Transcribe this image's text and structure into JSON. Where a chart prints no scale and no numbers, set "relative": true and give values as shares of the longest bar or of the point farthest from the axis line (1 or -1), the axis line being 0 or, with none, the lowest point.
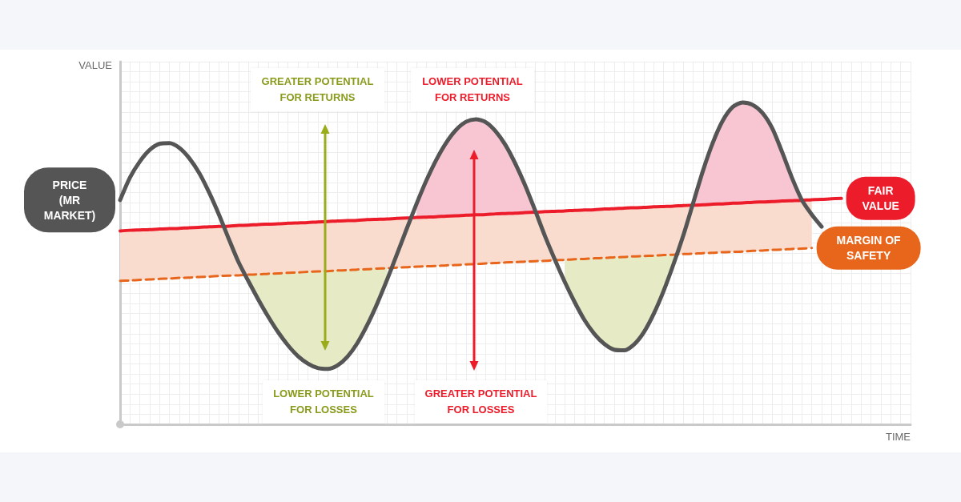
{
  "chart_data": {
    "type": "line",
    "xlabel": "TIME",
    "ylabel": "VALUE",
    "relative": true,
    "grid": true,
    "legend": false,
    "categories": [
      null,
      null,
      null,
      null,
      null,
      null,
      null,
      null,
      null,
      null,
      null,
      null,
      null,
      null,
      null,
      null,
      null,
      null,
      null,
      null,
      null,
      null,
      null,
      null,
      null,
      null,
      null,
      null,
      null,
      null,
      null,
      null,
      null,
      null,
      null,
      null,
      null,
      null,
      null,
      null,
      null,
      null,
      null,
      null,
      null,
      null,
      null,
      null,
      null,
      null,
      null,
      null,
      null,
      null,
      null,
      null,
      null,
      null,
      null,
      null,
      null,
      null,
      null,
      null,
      null,
      null,
      null,
      null,
      null,
      null,
      null,
      null,
      null,
      null,
      null,
      null,
      null,
      null,
      null,
      null,
      null
    ],
    "annotations": [
      "GREATER POTENTIAL FOR RETURNS",
      "LOWER POTENTIAL FOR RETURNS",
      "LOWER POTENTIAL FOR LOSSES",
      "GREATER POTENTIAL FOR LOSSES"
    ],
    "series": [
      {
        "name": "PRICE (MR MARKET)",
        "color": "#555555",
        "values": [
          0.697,
          0.767,
          0.817,
          0.853,
          0.872,
          0.874,
          0.859,
          0.827,
          0.781,
          0.721,
          0.652,
          0.576,
          0.503,
          0.444,
          0.387,
          0.334,
          0.286,
          0.245,
          0.212,
          0.189,
          0.175,
          0.172,
          0.183,
          0.21,
          0.252,
          0.308,
          0.374,
          0.448,
          0.527,
          0.607,
          0.685,
          0.758,
          0.822,
          0.875,
          0.915,
          0.94,
          0.948,
          0.939,
          0.911,
          0.868,
          0.81,
          0.742,
          0.665,
          0.585,
          0.512,
          0.443,
          0.38,
          0.324,
          0.281,
          0.25,
          0.232,
          0.23,
          0.248,
          0.286,
          0.343,
          0.414,
          0.497,
          0.587,
          0.688,
          0.789,
          0.876,
          0.944,
          0.986,
          1,
          0.993,
          0.968,
          0.92,
          0.846,
          0.766,
          0.697,
          0.652,
          0.614,
          null,
          null,
          null,
          null,
          null,
          null,
          null,
          null,
          null
        ]
      },
      {
        "name": "FAIR VALUE",
        "color": "#ec1c2a",
        "values": [
          0.601,
          0.603,
          0.604,
          0.605,
          0.607,
          0.608,
          0.609,
          0.611,
          0.612,
          0.614,
          0.615,
          0.616,
          0.618,
          0.619,
          0.621,
          0.622,
          0.623,
          0.625,
          0.626,
          0.627,
          0.629,
          0.63,
          0.632,
          0.633,
          0.634,
          0.636,
          0.637,
          0.638,
          0.64,
          0.641,
          0.643,
          0.644,
          0.645,
          0.647,
          0.648,
          0.65,
          0.651,
          0.652,
          0.654,
          0.655,
          0.656,
          0.658,
          0.659,
          0.661,
          0.662,
          0.663,
          0.665,
          0.666,
          0.667,
          0.669,
          0.67,
          0.672,
          0.673,
          0.674,
          0.676,
          0.677,
          0.678,
          0.68,
          0.681,
          0.682,
          0.684,
          0.685,
          0.687,
          0.688,
          0.69,
          0.691,
          0.692,
          0.694,
          0.695,
          0.696,
          0.698,
          0.699,
          0.701,
          0.702,
          null,
          null,
          null,
          null,
          null,
          null,
          null
        ]
      },
      {
        "name": "MARGIN OF SAFETY",
        "color": "#e8661c",
        "line_style": "dashed",
        "values": [
          0.446,
          0.447,
          0.449,
          0.45,
          0.452,
          0.453,
          0.455,
          0.456,
          0.458,
          0.459,
          0.461,
          0.462,
          0.463,
          0.465,
          0.466,
          0.468,
          0.469,
          0.471,
          0.472,
          0.474,
          0.475,
          0.476,
          0.478,
          0.479,
          0.481,
          0.482,
          0.484,
          0.485,
          0.487,
          0.488,
          0.49,
          0.491,
          0.492,
          0.494,
          0.495,
          0.497,
          0.498,
          0.5,
          0.501,
          0.503,
          0.504,
          0.506,
          0.507,
          0.508,
          0.51,
          0.511,
          0.513,
          0.514,
          0.516,
          0.517,
          0.519,
          0.52,
          0.522,
          0.523,
          0.524,
          0.526,
          0.527,
          0.529,
          0.53,
          0.532,
          0.533,
          0.535,
          0.536,
          0.537,
          0.539,
          0.54,
          0.542,
          0.543,
          0.545,
          0.546,
          0.548,
          null,
          null,
          null,
          null,
          null,
          null,
          null,
          null,
          null,
          null
        ]
      },
      {
        "color": "#fadccf",
        "values": [
          null,
          null,
          null,
          null,
          null,
          null,
          null,
          null,
          null,
          null,
          null,
          null,
          null,
          null,
          null,
          null,
          null,
          null,
          null,
          null,
          null,
          null,
          null,
          null,
          null,
          null,
          null,
          null,
          null,
          null,
          null,
          null,
          null,
          null,
          null,
          null,
          null,
          null,
          null,
          null,
          null,
          null,
          null,
          null,
          null,
          null,
          null,
          null,
          null,
          null,
          null,
          null,
          null,
          null,
          null,
          null,
          null,
          null,
          null,
          null,
          null,
          null,
          null,
          null,
          null,
          null,
          null,
          null,
          null,
          null,
          null,
          null,
          null,
          null,
          null,
          null,
          null,
          null,
          null,
          null,
          null
        ],
        "lower": [
          0.446,
          0.447,
          0.449,
          0.45,
          0.452,
          0.453,
          0.455,
          0.456,
          0.458,
          0.459,
          0.461,
          0.462,
          0.463,
          0.465,
          0.466,
          0.468,
          0.469,
          0.471,
          0.472,
          0.474,
          0.475,
          0.476,
          0.478,
          0.479,
          0.481,
          0.482,
          0.484,
          0.485,
          0.487,
          0.488,
          0.49,
          0.491,
          0.492,
          0.494,
          0.495,
          0.497,
          0.498,
          0.5,
          0.501,
          0.503,
          0.504,
          0.506,
          0.507,
          0.508,
          0.51,
          0.511,
          0.513,
          0.514,
          0.516,
          0.517,
          0.519,
          0.52,
          0.522,
          0.523,
          0.524,
          0.526,
          0.527,
          0.529,
          0.53,
          0.532,
          0.533,
          0.535,
          0.536,
          0.537,
          0.539,
          0.54,
          0.542,
          0.543,
          0.545,
          0.546,
          0.548,
          null,
          null,
          null,
          null,
          null,
          null,
          null,
          null,
          null,
          null
        ],
        "upper": [
          0.601,
          0.603,
          0.604,
          0.605,
          0.607,
          0.608,
          0.609,
          0.611,
          0.612,
          0.614,
          0.615,
          0.616,
          0.618,
          0.619,
          0.621,
          0.622,
          0.623,
          0.625,
          0.626,
          0.627,
          0.629,
          0.63,
          0.632,
          0.633,
          0.634,
          0.636,
          0.637,
          0.638,
          0.64,
          0.641,
          0.643,
          0.644,
          0.645,
          0.647,
          0.648,
          0.65,
          0.651,
          0.652,
          0.654,
          0.655,
          0.656,
          0.658,
          0.659,
          0.661,
          0.662,
          0.663,
          0.665,
          0.666,
          0.667,
          0.669,
          0.67,
          0.672,
          0.673,
          0.674,
          0.676,
          0.677,
          0.678,
          0.68,
          0.681,
          0.682,
          0.684,
          0.685,
          0.687,
          0.688,
          0.69,
          0.691,
          0.692,
          0.694,
          0.695,
          0.696,
          0.698,
          null,
          null,
          null,
          null,
          null,
          null,
          null,
          null,
          null,
          null
        ]
      },
      {
        "color": "#f7c6d2",
        "values": [
          null,
          null,
          null,
          null,
          null,
          null,
          null,
          null,
          null,
          null,
          null,
          null,
          null,
          null,
          null,
          null,
          null,
          null,
          null,
          null,
          null,
          null,
          null,
          null,
          null,
          null,
          null,
          null,
          null,
          null,
          null,
          null,
          null,
          null,
          null,
          null,
          null,
          null,
          null,
          null,
          null,
          null,
          null,
          null,
          null,
          null,
          null,
          null,
          null,
          null,
          null,
          null,
          null,
          null,
          null,
          null,
          null,
          null,
          null,
          null,
          null,
          null,
          null,
          null,
          null,
          null,
          null,
          null,
          null,
          null,
          null,
          null,
          null,
          null,
          null,
          null,
          null,
          null,
          null,
          null,
          null
        ],
        "lower": [
          null,
          null,
          null,
          null,
          null,
          null,
          null,
          null,
          null,
          null,
          null,
          null,
          null,
          null,
          null,
          null,
          null,
          null,
          null,
          null,
          null,
          null,
          null,
          null,
          null,
          null,
          null,
          null,
          null,
          null,
          0.643,
          0.644,
          0.645,
          0.647,
          0.648,
          0.65,
          0.651,
          0.652,
          0.654,
          0.655,
          0.656,
          0.658,
          0.659,
          null,
          null,
          null,
          null,
          null,
          null,
          null,
          null,
          null,
          null,
          null,
          null,
          null,
          null,
          null,
          null,
          null,
          null,
          null,
          null,
          null,
          null,
          null,
          null,
          null,
          null,
          null,
          null,
          null,
          null,
          null,
          null,
          null,
          null,
          null,
          null,
          null,
          null
        ],
        "upper": [
          null,
          null,
          null,
          null,
          null,
          null,
          null,
          null,
          null,
          null,
          null,
          null,
          null,
          null,
          null,
          null,
          null,
          null,
          null,
          null,
          null,
          null,
          null,
          null,
          null,
          null,
          null,
          null,
          null,
          null,
          0.685,
          0.758,
          0.822,
          0.875,
          0.915,
          0.94,
          0.948,
          0.939,
          0.911,
          0.868,
          0.81,
          0.742,
          0.665,
          null,
          null,
          null,
          null,
          null,
          null,
          null,
          null,
          null,
          null,
          null,
          null,
          null,
          null,
          null,
          null,
          null,
          null,
          null,
          null,
          null,
          null,
          null,
          null,
          null,
          null,
          null,
          null,
          null,
          null,
          null,
          null,
          null,
          null,
          null,
          null,
          null,
          null
        ]
      },
      {
        "color": "#f7c6d2",
        "values": [
          null,
          null,
          null,
          null,
          null,
          null,
          null,
          null,
          null,
          null,
          null,
          null,
          null,
          null,
          null,
          null,
          null,
          null,
          null,
          null,
          null,
          null,
          null,
          null,
          null,
          null,
          null,
          null,
          null,
          null,
          null,
          null,
          null,
          null,
          null,
          null,
          null,
          null,
          null,
          null,
          null,
          null,
          null,
          null,
          null,
          null,
          null,
          null,
          null,
          null,
          null,
          null,
          null,
          null,
          null,
          null,
          null,
          null,
          null,
          null,
          null,
          null,
          null,
          null,
          null,
          null,
          null,
          null,
          null,
          null,
          null,
          null,
          null,
          null,
          null,
          null,
          null,
          null,
          null,
          null,
          null
        ],
        "lower": [
          null,
          null,
          null,
          null,
          null,
          null,
          null,
          null,
          null,
          null,
          null,
          null,
          null,
          null,
          null,
          null,
          null,
          null,
          null,
          null,
          null,
          null,
          null,
          null,
          null,
          null,
          null,
          null,
          null,
          null,
          null,
          null,
          null,
          null,
          null,
          null,
          null,
          null,
          null,
          null,
          null,
          null,
          null,
          null,
          null,
          null,
          null,
          null,
          null,
          null,
          null,
          null,
          null,
          null,
          null,
          null,
          null,
          null,
          0.681,
          0.682,
          0.684,
          0.685,
          0.687,
          0.688,
          0.69,
          0.691,
          0.692,
          0.694,
          0.695,
          0.696,
          null,
          null,
          null,
          null,
          null,
          null,
          null,
          null,
          null,
          null,
          null
        ],
        "upper": [
          null,
          null,
          null,
          null,
          null,
          null,
          null,
          null,
          null,
          null,
          null,
          null,
          null,
          null,
          null,
          null,
          null,
          null,
          null,
          null,
          null,
          null,
          null,
          null,
          null,
          null,
          null,
          null,
          null,
          null,
          null,
          null,
          null,
          null,
          null,
          null,
          null,
          null,
          null,
          null,
          null,
          null,
          null,
          null,
          null,
          null,
          null,
          null,
          null,
          null,
          null,
          null,
          null,
          null,
          null,
          null,
          null,
          null,
          0.688,
          0.789,
          0.876,
          0.944,
          0.986,
          1,
          0.993,
          0.968,
          0.92,
          0.846,
          0.766,
          0.697,
          null,
          null,
          null,
          null,
          null,
          null,
          null,
          null,
          null,
          null,
          null
        ]
      },
      {
        "color": "#e6ebc6",
        "values": [
          null,
          null,
          null,
          null,
          null,
          null,
          null,
          null,
          null,
          null,
          null,
          null,
          null,
          null,
          null,
          null,
          null,
          null,
          null,
          null,
          null,
          null,
          null,
          null,
          null,
          null,
          null,
          null,
          null,
          null,
          null,
          null,
          null,
          null,
          null,
          null,
          null,
          null,
          null,
          null,
          null,
          null,
          null,
          null,
          null,
          null,
          null,
          null,
          null,
          null,
          null,
          null,
          null,
          null,
          null,
          null,
          null,
          null,
          null,
          null,
          null,
          null,
          null,
          null,
          null,
          null,
          null,
          null,
          null,
          null,
          null,
          null,
          null,
          null,
          null,
          null,
          null,
          null,
          null,
          null,
          null
        ],
        "lower": [
          null,
          null,
          null,
          null,
          null,
          null,
          null,
          null,
          null,
          null,
          null,
          null,
          null,
          0.444,
          0.387,
          0.334,
          0.286,
          0.245,
          0.212,
          0.189,
          0.175,
          0.172,
          0.183,
          0.21,
          0.252,
          0.308,
          0.374,
          0.448,
          null,
          null,
          null,
          null,
          null,
          null,
          null,
          null,
          null,
          null,
          null,
          null,
          null,
          null,
          null,
          null,
          null,
          null,
          null,
          null,
          null,
          null,
          null,
          null,
          null,
          null,
          null,
          null,
          null,
          null,
          null,
          null,
          null,
          null,
          null,
          null,
          null,
          null,
          null,
          null,
          null,
          null,
          null,
          null,
          null,
          null,
          null,
          null,
          null,
          null,
          null,
          null,
          null
        ],
        "upper": [
          null,
          null,
          null,
          null,
          null,
          null,
          null,
          null,
          null,
          null,
          null,
          null,
          null,
          0.465,
          0.466,
          0.468,
          0.469,
          0.471,
          0.472,
          0.474,
          0.475,
          0.476,
          0.478,
          0.479,
          0.481,
          0.482,
          0.484,
          0.485,
          null,
          null,
          null,
          null,
          null,
          null,
          null,
          null,
          null,
          null,
          null,
          null,
          null,
          null,
          null,
          null,
          null,
          null,
          null,
          null,
          null,
          null,
          null,
          null,
          null,
          null,
          null,
          null,
          null,
          null,
          null,
          null,
          null,
          null,
          null,
          null,
          null,
          null,
          null,
          null,
          null,
          null,
          null,
          null,
          null,
          null,
          null,
          null,
          null,
          null,
          null,
          null,
          null
        ]
      },
      {
        "color": "#e6ebc6",
        "values": [
          null,
          null,
          null,
          null,
          null,
          null,
          null,
          null,
          null,
          null,
          null,
          null,
          null,
          null,
          null,
          null,
          null,
          null,
          null,
          null,
          null,
          null,
          null,
          null,
          null,
          null,
          null,
          null,
          null,
          null,
          null,
          null,
          null,
          null,
          null,
          null,
          null,
          null,
          null,
          null,
          null,
          null,
          null,
          null,
          null,
          null,
          null,
          null,
          null,
          null,
          null,
          null,
          null,
          null,
          null,
          null,
          null,
          null,
          null,
          null,
          null,
          null,
          null,
          null,
          null,
          null,
          null,
          null,
          null,
          null,
          null,
          null,
          null,
          null,
          null,
          null,
          null,
          null,
          null,
          null,
          null
        ],
        "lower": [
          null,
          null,
          null,
          null,
          null,
          null,
          null,
          null,
          null,
          null,
          null,
          null,
          null,
          null,
          null,
          null,
          null,
          null,
          null,
          null,
          null,
          null,
          null,
          null,
          null,
          null,
          null,
          null,
          null,
          null,
          null,
          null,
          null,
          null,
          null,
          null,
          null,
          null,
          null,
          null,
          null,
          null,
          null,
          null,
          null,
          0.443,
          0.38,
          0.324,
          0.281,
          0.25,
          0.232,
          0.23,
          0.248,
          0.286,
          0.343,
          0.414,
          0.497,
          null,
          null,
          null,
          null,
          null,
          null,
          null,
          null,
          null,
          null,
          null,
          null,
          null,
          null,
          null,
          null,
          null,
          null,
          null,
          null,
          null,
          null,
          null,
          null
        ],
        "upper": [
          null,
          null,
          null,
          null,
          null,
          null,
          null,
          null,
          null,
          null,
          null,
          null,
          null,
          null,
          null,
          null,
          null,
          null,
          null,
          null,
          null,
          null,
          null,
          null,
          null,
          null,
          null,
          null,
          null,
          null,
          null,
          null,
          null,
          null,
          null,
          null,
          null,
          null,
          null,
          null,
          null,
          null,
          null,
          null,
          null,
          0.511,
          0.513,
          0.514,
          0.516,
          0.517,
          0.519,
          0.52,
          0.522,
          0.523,
          0.524,
          0.526,
          0.527,
          null,
          null,
          null,
          null,
          null,
          null,
          null,
          null,
          null,
          null,
          null,
          null,
          null,
          null,
          null,
          null,
          null,
          null,
          null,
          null,
          null,
          null,
          null,
          null
        ]
      }
    ]
  }
}
